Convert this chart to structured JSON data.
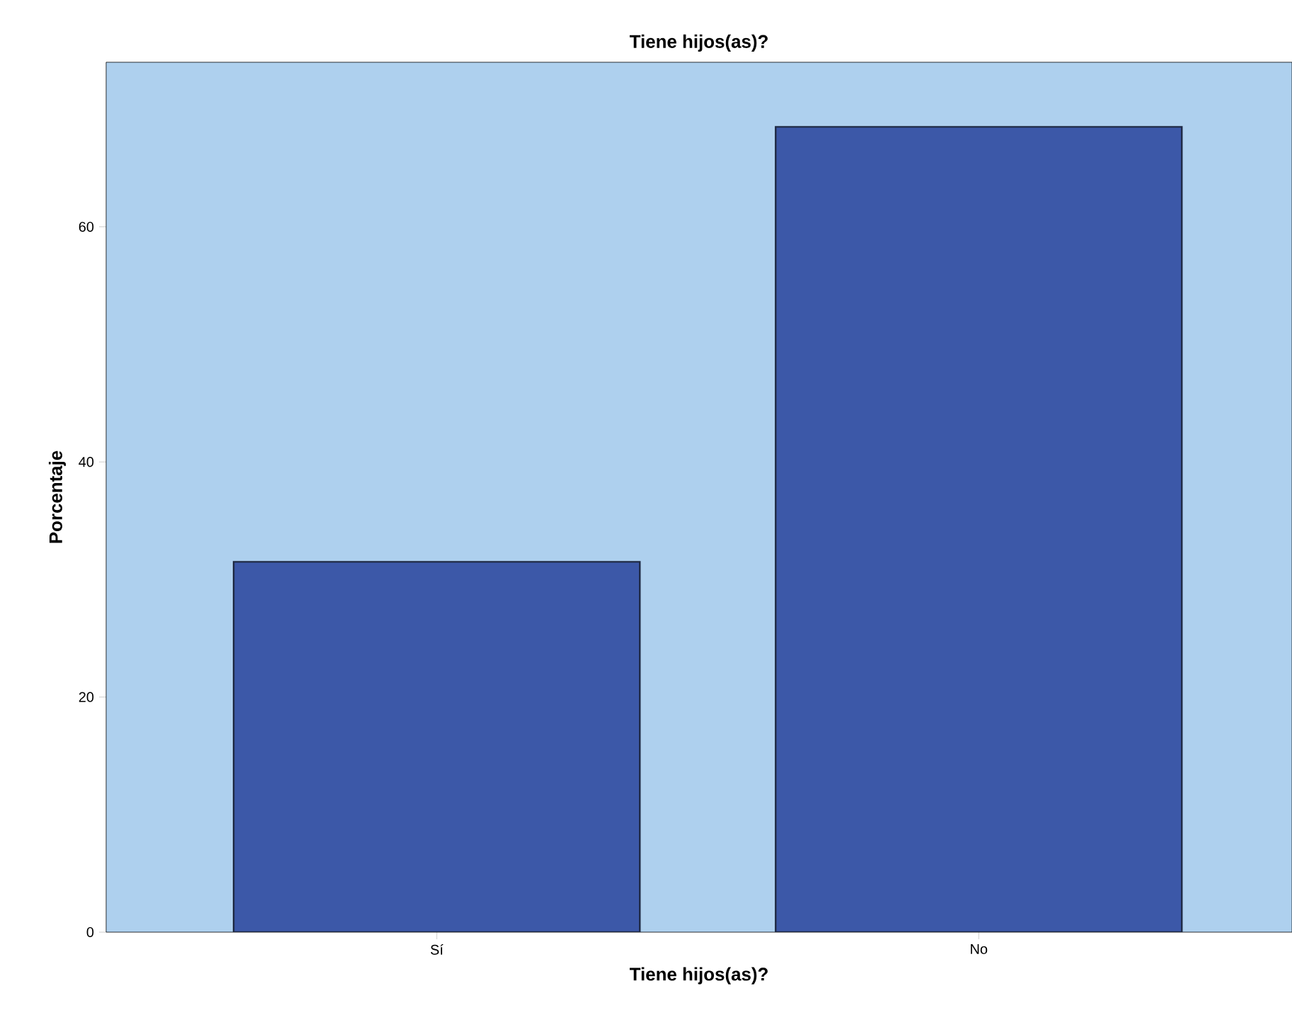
{
  "chart_data": {
    "type": "bar",
    "title": "Tiene hijos(as)?",
    "xlabel": "Tiene hijos(as)?",
    "ylabel": "Porcentaje",
    "categories": [
      "Sí",
      "No"
    ],
    "values": [
      31.5,
      68.5
    ],
    "color": "#3c58a8",
    "ylim": [
      0,
      74
    ],
    "yticks": [
      0,
      20,
      40,
      60
    ],
    "grid": false
  }
}
